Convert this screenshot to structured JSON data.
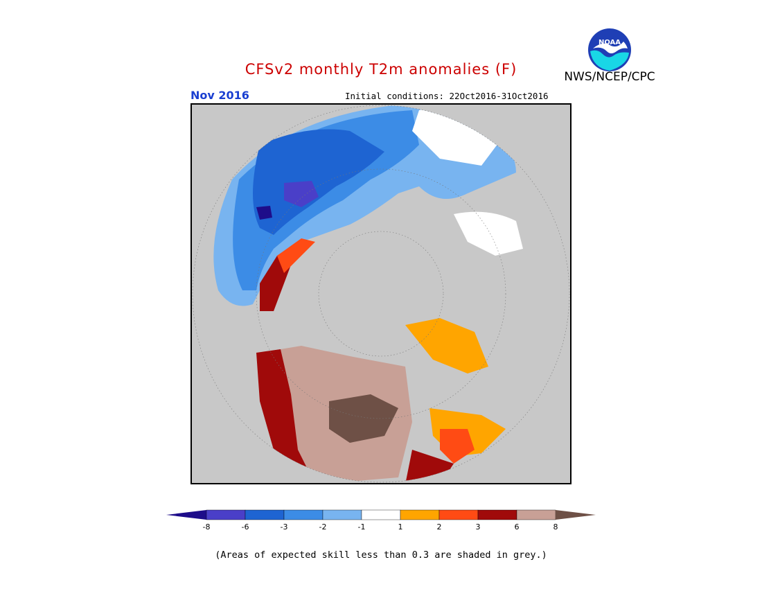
{
  "header": {
    "title": "CFSv2 monthly T2m anomalies (F)",
    "agency": "NWS/NCEP/CPC",
    "month": "Nov 2016",
    "initial_conditions": "Initial conditions: 22Oct2016-31Oct2016",
    "logo_text": "NOAA"
  },
  "colors": {
    "title": "#cc0000",
    "month": "#1a3fd1",
    "skill_grey": "#c8c8c8",
    "ocean_grey": "#c8c8c8"
  },
  "legend": {
    "ticks": [
      "-8",
      "-6",
      "-3",
      "-2",
      "-1",
      "1",
      "2",
      "3",
      "6",
      "8"
    ],
    "colors": [
      "#1e0d8a",
      "#4a3fc8",
      "#1e64d2",
      "#3c8ce6",
      "#78b4f0",
      "#ffffff",
      "#ffa500",
      "#ff4b14",
      "#a00a0a",
      "#c8a096",
      "#6e5046"
    ]
  },
  "footnote": "(Areas of expected skill less than 0.3 are shaded in grey.)"
}
